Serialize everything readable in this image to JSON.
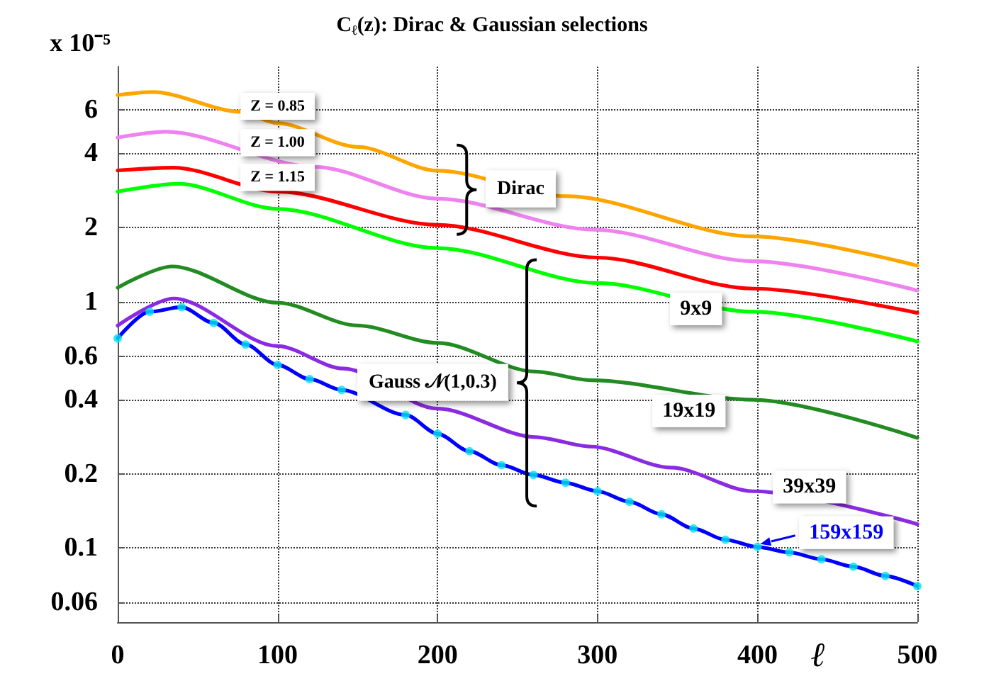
{
  "chart_data": {
    "type": "line",
    "title": "C$_{ℓ}$(z): Dirac & Gaussian selections",
    "xlabel": "ℓ",
    "ylabel": "x 10⁻⁵",
    "log": "y",
    "grid": true,
    "marker": "none",
    "line_style": "solid",
    "xlim": [
      0,
      500
    ],
    "xticks": [
      0,
      100,
      200,
      300,
      400,
      500
    ],
    "ylim": [
      0.05,
      9
    ],
    "yticks": [
      0.06,
      0.1,
      0.2,
      0.4,
      0.6,
      1,
      2,
      4,
      6
    ],
    "annotations": [
      "Dirac",
      "Gauss 𝒩(1,0.3)"
    ],
    "series": [
      {
        "name": "Z = 0.85",
        "color": "#ffa500",
        "x": [
          0,
          22,
          77,
          100,
          150,
          200,
          281,
          397,
          500
        ],
        "values": [
          6.9,
          7.1,
          5.9,
          5.3,
          4.25,
          3.4,
          2.68,
          1.84,
          1.4
        ]
      },
      {
        "name": "Z = 1.00",
        "color": "#ee82ee",
        "x": [
          0,
          30,
          123,
          200,
          298,
          397,
          500
        ],
        "values": [
          4.64,
          4.9,
          3.53,
          2.62,
          1.96,
          1.46,
          1.11
        ]
      },
      {
        "name": "Z = 1.15",
        "color": "#ff0000",
        "x": [
          0,
          35,
          100,
          200,
          300,
          397,
          500
        ],
        "values": [
          3.41,
          3.5,
          2.8,
          2.05,
          1.51,
          1.13,
          0.9
        ]
      },
      {
        "name": "9x9",
        "color": "#00ff00",
        "x": [
          0,
          38,
          100,
          200,
          300,
          397,
          500
        ],
        "values": [
          2.8,
          3.01,
          2.38,
          1.65,
          1.19,
          0.91,
          0.69
        ]
      },
      {
        "name": "19x19",
        "color": "#228b22",
        "x": [
          0,
          34,
          100,
          150,
          200,
          261,
          296,
          397,
          500
        ],
        "values": [
          1.14,
          1.39,
          0.99,
          0.8,
          0.68,
          0.52,
          0.48,
          0.4,
          0.28
        ]
      },
      {
        "name": "39x39",
        "color": "#8a2be2",
        "x": [
          0,
          35,
          100,
          141,
          200,
          261,
          296,
          346,
          397,
          500
        ],
        "values": [
          0.8,
          1.03,
          0.66,
          0.535,
          0.368,
          0.282,
          0.258,
          0.212,
          0.17,
          0.125
        ]
      },
      {
        "name": "159x159",
        "color": "#0000ff",
        "x": [
          0,
          20,
          40,
          60,
          80,
          100,
          120,
          140,
          180,
          200,
          220,
          240,
          260,
          280,
          300,
          320,
          340,
          360,
          380,
          400,
          420,
          440,
          460,
          480,
          500
        ],
        "values": [
          0.71,
          0.91,
          0.95,
          0.82,
          0.67,
          0.554,
          0.485,
          0.438,
          0.347,
          0.291,
          0.247,
          0.217,
          0.198,
          0.184,
          0.17,
          0.154,
          0.137,
          0.12,
          0.108,
          0.101,
          0.096,
          0.09,
          0.084,
          0.077,
          0.07
        ]
      },
      {
        "type": "scatter",
        "marker": "circle",
        "color": "#00e5ee",
        "x": [
          0,
          20,
          40,
          60,
          80,
          100,
          120,
          140,
          180,
          200,
          220,
          240,
          260,
          280,
          300,
          320,
          340,
          360,
          380,
          400,
          420,
          440,
          460,
          480,
          500
        ],
        "values": [
          0.71,
          0.91,
          0.95,
          0.82,
          0.67,
          0.554,
          0.485,
          0.438,
          0.347,
          0.291,
          0.247,
          0.217,
          0.198,
          0.184,
          0.17,
          0.154,
          0.137,
          0.12,
          0.108,
          0.101,
          0.096,
          0.09,
          0.084,
          0.077,
          0.07
        ]
      }
    ]
  }
}
